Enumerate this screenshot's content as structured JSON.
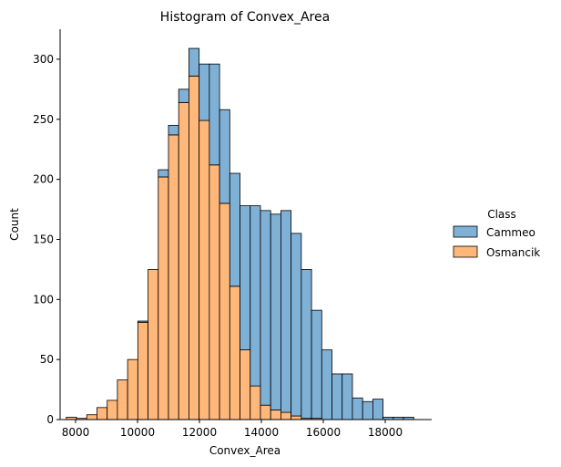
{
  "chart_data": {
    "type": "bar",
    "title": "Histogram of Convex_Area",
    "xlabel": "Convex_Area",
    "ylabel": "Count",
    "xlim": [
      7500,
      19500
    ],
    "ylim": [
      0,
      325
    ],
    "x_ticks": [
      8000,
      10000,
      12000,
      14000,
      16000,
      18000
    ],
    "y_ticks": [
      0,
      50,
      100,
      150,
      200,
      250,
      300
    ],
    "grid": false,
    "stacked": true,
    "bin_start": 7700,
    "bin_width": 330,
    "legend": {
      "title": "Class",
      "placement": "right",
      "entries": [
        {
          "label": "Cammeo",
          "color": "#7fb0d6"
        },
        {
          "label": "Osmancik",
          "color": "#ffb77a"
        }
      ]
    },
    "series": [
      {
        "name": "Osmancik",
        "color": "#ffb77a",
        "values": [
          2,
          1,
          4,
          10,
          16,
          33,
          50,
          81,
          125,
          202,
          237,
          264,
          286,
          249,
          212,
          180,
          111,
          58,
          28,
          12,
          8,
          6,
          3,
          1,
          1,
          0,
          0,
          0,
          0,
          0,
          0,
          0,
          0,
          0
        ]
      },
      {
        "name": "Cammeo",
        "color": "#7fb0d6",
        "values": [
          0,
          0,
          0,
          0,
          0,
          0,
          0,
          1,
          0,
          6,
          8,
          11,
          23,
          47,
          84,
          78,
          94,
          120,
          150,
          162,
          163,
          168,
          152,
          124,
          90,
          58,
          38,
          38,
          18,
          15,
          17,
          2,
          2,
          2
        ]
      }
    ]
  }
}
